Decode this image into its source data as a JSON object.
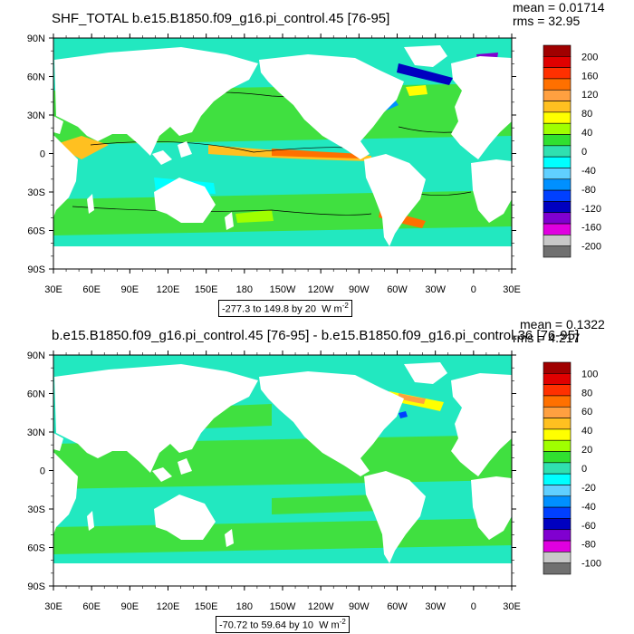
{
  "panels": [
    {
      "title": "SHF_TOTAL b.e15.B1850.f09_g16.pi_control.45 [76-95]",
      "mean_label": "mean = 0.01714",
      "rms_label": "rms = 32.95",
      "range_label": "-277.3 to 149.8 by 20",
      "units_base": "W m",
      "units_exp": "-2",
      "lat_labels": [
        "90N",
        "60N",
        "30N",
        "0",
        "30S",
        "60S",
        "90S"
      ],
      "lon_labels": [
        "30E",
        "60E",
        "90E",
        "120E",
        "150E",
        "180",
        "150W",
        "120W",
        "90W",
        "60W",
        "30W",
        "0",
        "30E"
      ],
      "colorbar_labels": [
        "200",
        "160",
        "120",
        "80",
        "40",
        "0",
        "-40",
        "-80",
        "-120",
        "-160",
        "-200"
      ]
    },
    {
      "title": "b.e15.B1850.f09_g16.pi_control.45 [76-95] - b.e15.B1850.f09_g16.pi_control.36 [76-95]",
      "mean_label": "mean = 0.1322",
      "rms_label": "rms = 4.217",
      "range_label": "-70.72 to 59.64 by 10",
      "units_base": "W m",
      "units_exp": "-2",
      "lat_labels": [
        "90N",
        "60N",
        "30N",
        "0",
        "30S",
        "60S",
        "90S"
      ],
      "lon_labels": [
        "30E",
        "60E",
        "90E",
        "120E",
        "150E",
        "180",
        "150W",
        "120W",
        "90W",
        "60W",
        "30W",
        "0",
        "30E"
      ],
      "colorbar_labels": [
        "100",
        "80",
        "60",
        "40",
        "20",
        "0",
        "-20",
        "-40",
        "-60",
        "-80",
        "-100"
      ]
    }
  ],
  "colors": {
    "palette": [
      "#a00000",
      "#e00000",
      "#ff3000",
      "#ff7000",
      "#ffa040",
      "#ffc020",
      "#ffff00",
      "#a0ff00",
      "#30e030",
      "#30e0b0",
      "#00ffff",
      "#60d0ff",
      "#0090ff",
      "#0040ff",
      "#0000c0",
      "#8000d0",
      "#e000e0",
      "#c8c8c8",
      "#707070"
    ],
    "land": "#ffffff",
    "ocean_main": "#22e8c0",
    "ocean_green": "#40e040"
  }
}
